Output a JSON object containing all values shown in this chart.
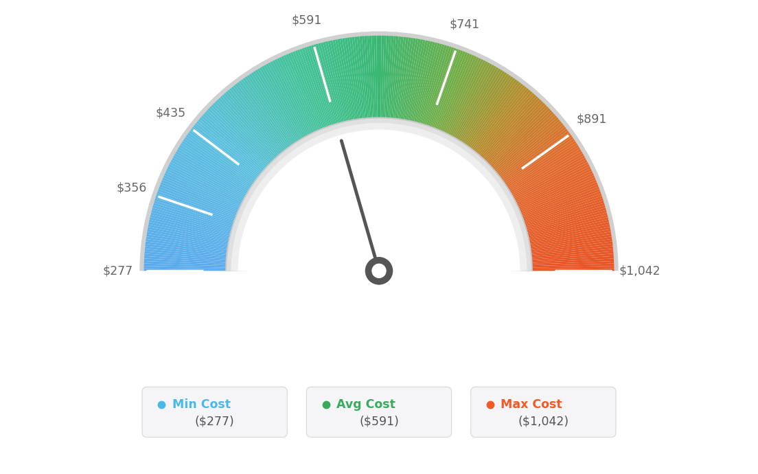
{
  "min_val": 277,
  "max_val": 1042,
  "avg_val": 591,
  "tick_labels": [
    "$277",
    "$356",
    "$435",
    "$591",
    "$741",
    "$891",
    "$1,042"
  ],
  "tick_values": [
    277,
    356,
    435,
    591,
    741,
    891,
    1042
  ],
  "color_stops": [
    [
      0.0,
      [
        0.36,
        0.67,
        0.93
      ]
    ],
    [
      0.22,
      [
        0.36,
        0.75,
        0.87
      ]
    ],
    [
      0.38,
      [
        0.27,
        0.76,
        0.6
      ]
    ],
    [
      0.5,
      [
        0.23,
        0.72,
        0.45
      ]
    ],
    [
      0.62,
      [
        0.45,
        0.68,
        0.28
      ]
    ],
    [
      0.72,
      [
        0.72,
        0.55,
        0.18
      ]
    ],
    [
      0.82,
      [
        0.88,
        0.42,
        0.18
      ]
    ],
    [
      1.0,
      [
        0.91,
        0.33,
        0.15
      ]
    ]
  ],
  "legend": [
    {
      "label": "Min Cost",
      "value": "($277)",
      "color": "#4cb8e8"
    },
    {
      "label": "Avg Cost",
      "value": "($591)",
      "color": "#3aaa5c"
    },
    {
      "label": "Max Cost",
      "value": "($1,042)",
      "color": "#f05a28"
    }
  ],
  "needle_color": "#555555",
  "background_color": "#ffffff",
  "text_color": "#666666"
}
